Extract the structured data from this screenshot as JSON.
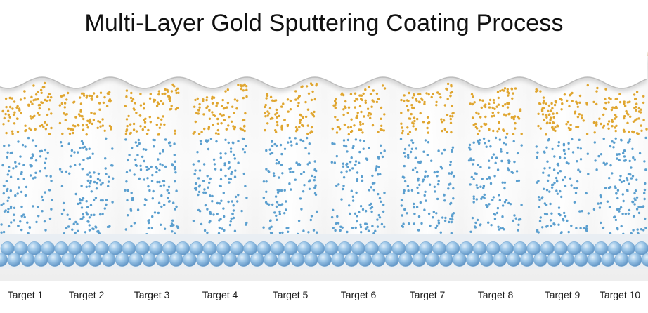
{
  "title": "Multi-Layer Gold Sputtering Coating Process",
  "targets": [
    "Target 1",
    "Target 2",
    "Target 3",
    "Target 4",
    "Target 5",
    "Target 6",
    "Target 7",
    "Target 8",
    "Target 9",
    "Target 10"
  ],
  "colors": {
    "gold_bar": "#c9a15a",
    "gold_particle": "#e0a630",
    "blue_particle": "#5b9fcf",
    "substrate_sphere": "#8fbde3",
    "chamber_shadow": "#c9c9c9",
    "label_text": "#1a1a1a"
  }
}
